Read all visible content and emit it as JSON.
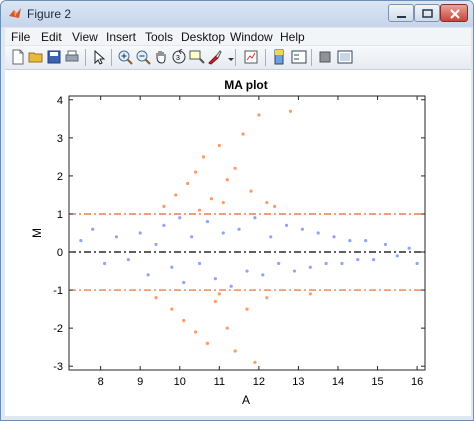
{
  "window": {
    "title": "Figure 2"
  },
  "menubar": {
    "items": [
      "File",
      "Edit",
      "View",
      "Insert",
      "Tools",
      "Desktop",
      "Window",
      "Help"
    ]
  },
  "toolbar": {
    "icons": [
      "new-figure-icon",
      "open-file-icon",
      "save-icon",
      "print-icon",
      "edit-plot-arrow-icon",
      "zoom-in-icon",
      "zoom-out-icon",
      "pan-hand-icon",
      "rotate-3d-icon",
      "data-cursor-icon",
      "brush-icon",
      "link-plot-icon",
      "colorbar-icon",
      "legend-icon",
      "hide-plot-tools-icon",
      "show-plot-tools-icon"
    ]
  },
  "colors": {
    "outside_points": "#ff9a66",
    "inside_points": "#8fa5f5",
    "threshold_line": "#e8642a",
    "zero_line": "#000000"
  },
  "chart_data": {
    "type": "scatter",
    "title": "MA plot",
    "xlabel": "A",
    "ylabel": "M",
    "xlim": [
      7.2,
      16.2
    ],
    "ylim": [
      -3.1,
      4.1
    ],
    "x_ticks": [
      "8",
      "9",
      "10",
      "11",
      "12",
      "13",
      "14",
      "15",
      "16"
    ],
    "y_ticks": [
      "4",
      "3",
      "2",
      "1",
      "0",
      "-1",
      "-2",
      "-3"
    ],
    "x_tick_values": [
      8,
      9,
      10,
      11,
      12,
      13,
      14,
      15,
      16
    ],
    "y_tick_values": [
      4,
      3,
      2,
      1,
      0,
      -1,
      -2,
      -3
    ],
    "horizontal_lines": [
      {
        "y": 1,
        "style": "dash-dot",
        "color": "#e8642a"
      },
      {
        "y": 0,
        "style": "dash-dot",
        "color": "#000000"
      },
      {
        "y": -1,
        "style": "dash-dot",
        "color": "#e8642a"
      }
    ],
    "series": [
      {
        "values": [
          [
            7.5,
            0.3
          ],
          [
            7.8,
            0.6
          ],
          [
            8.1,
            -0.3
          ],
          [
            8.4,
            0.4
          ],
          [
            8.7,
            -0.2
          ],
          [
            9.0,
            0.5
          ],
          [
            9.2,
            -0.6
          ],
          [
            9.4,
            0.2
          ],
          [
            9.6,
            0.7
          ],
          [
            9.8,
            -0.4
          ],
          [
            10.0,
            0.9
          ],
          [
            10.1,
            -0.8
          ],
          [
            10.3,
            0.4
          ],
          [
            10.5,
            -0.3
          ],
          [
            10.7,
            0.8
          ],
          [
            10.9,
            -0.7
          ],
          [
            11.1,
            0.5
          ],
          [
            11.3,
            -0.9
          ],
          [
            11.5,
            0.6
          ],
          [
            11.7,
            -0.5
          ],
          [
            11.9,
            0.9
          ],
          [
            12.1,
            -0.6
          ],
          [
            12.3,
            0.4
          ],
          [
            12.5,
            -0.3
          ],
          [
            12.7,
            0.7
          ],
          [
            12.9,
            -0.5
          ],
          [
            13.1,
            0.6
          ],
          [
            13.3,
            -0.4
          ],
          [
            13.5,
            0.5
          ],
          [
            13.7,
            -0.3
          ],
          [
            13.9,
            0.4
          ],
          [
            14.1,
            -0.3
          ],
          [
            14.3,
            0.3
          ],
          [
            14.5,
            -0.2
          ],
          [
            14.7,
            0.3
          ],
          [
            14.9,
            -0.2
          ],
          [
            15.2,
            0.2
          ],
          [
            15.5,
            -0.1
          ],
          [
            15.8,
            0.1
          ],
          [
            16.0,
            -0.3
          ]
        ]
      },
      {
        "values": [
          [
            9.6,
            1.2
          ],
          [
            9.9,
            1.5
          ],
          [
            10.2,
            1.8
          ],
          [
            10.4,
            2.1
          ],
          [
            10.6,
            2.5
          ],
          [
            10.8,
            1.4
          ],
          [
            11.0,
            2.8
          ],
          [
            11.2,
            1.9
          ],
          [
            11.4,
            2.2
          ],
          [
            11.6,
            3.1
          ],
          [
            11.8,
            1.6
          ],
          [
            12.0,
            3.6
          ],
          [
            12.2,
            1.3
          ],
          [
            10.5,
            1.1
          ],
          [
            11.1,
            1.3
          ],
          [
            12.4,
            1.2
          ],
          [
            12.8,
            3.7
          ],
          [
            9.4,
            -1.2
          ],
          [
            9.8,
            -1.5
          ],
          [
            10.1,
            -1.8
          ],
          [
            10.4,
            -2.1
          ],
          [
            10.7,
            -2.4
          ],
          [
            10.9,
            -1.3
          ],
          [
            11.2,
            -2.0
          ],
          [
            11.4,
            -2.6
          ],
          [
            11.7,
            -1.5
          ],
          [
            11.9,
            -2.9
          ],
          [
            12.2,
            -1.2
          ],
          [
            13.3,
            -1.1
          ],
          [
            11.0,
            -1.1
          ]
        ]
      }
    ]
  }
}
